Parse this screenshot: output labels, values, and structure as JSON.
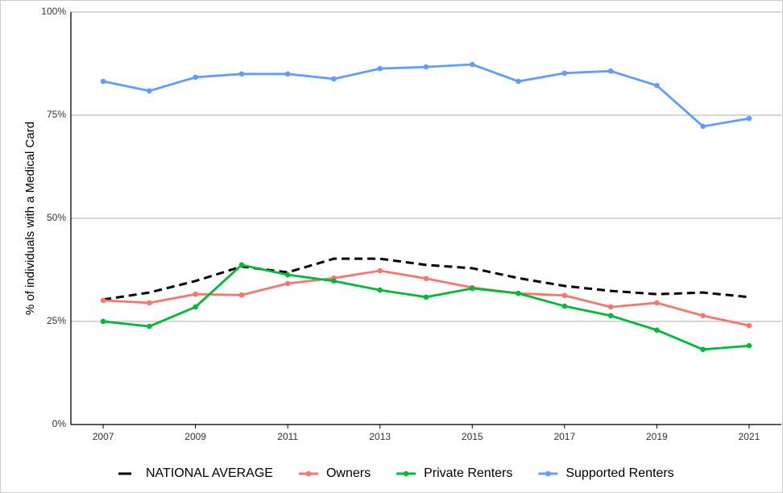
{
  "chart_data": {
    "type": "line",
    "y_label": "% of individuals with a Medical Card",
    "x": [
      2007,
      2008,
      2009,
      2010,
      2011,
      2012,
      2013,
      2014,
      2015,
      2016,
      2017,
      2018,
      2019,
      2020,
      2021
    ],
    "series": [
      {
        "name": "NATIONAL AVERAGE",
        "color": "#000000",
        "dashed": true,
        "markers": false,
        "values": [
          30.3,
          32.0,
          34.8,
          38.3,
          36.9,
          40.2,
          40.2,
          38.7,
          37.9,
          35.5,
          33.6,
          32.4,
          31.6,
          32.0,
          30.9
        ]
      },
      {
        "name": "Owners",
        "color": "#f8766d",
        "dashed": false,
        "markers": true,
        "values": [
          30.1,
          29.5,
          31.6,
          31.4,
          34.2,
          35.5,
          37.3,
          35.4,
          33.2,
          31.8,
          31.3,
          28.5,
          29.5,
          26.4,
          24.0
        ]
      },
      {
        "name": "Private Renters",
        "color": "#00ba38",
        "dashed": false,
        "markers": true,
        "values": [
          25.0,
          23.8,
          28.5,
          38.7,
          36.3,
          34.8,
          32.6,
          30.9,
          33.0,
          31.8,
          28.7,
          26.4,
          22.9,
          18.2,
          19.1
        ]
      },
      {
        "name": "Supported Renters",
        "color": "#619cff",
        "dashed": false,
        "markers": true,
        "values": [
          83.2,
          80.9,
          84.2,
          85.0,
          85.0,
          83.8,
          86.3,
          86.7,
          87.3,
          83.2,
          85.2,
          85.7,
          82.2,
          72.3,
          74.2
        ]
      }
    ],
    "xlim": [
      2006.3,
      2021.7
    ],
    "xticks": [
      2007,
      2009,
      2011,
      2013,
      2015,
      2017,
      2019,
      2021
    ],
    "ylim": [
      0,
      100
    ],
    "yticks": [
      {
        "value": 0,
        "label": "0%"
      },
      {
        "value": 25,
        "label": "25%"
      },
      {
        "value": 50,
        "label": "50%"
      },
      {
        "value": 75,
        "label": "75%"
      },
      {
        "value": 100,
        "label": "100%"
      }
    ],
    "grid": true,
    "legend": "bottom"
  }
}
